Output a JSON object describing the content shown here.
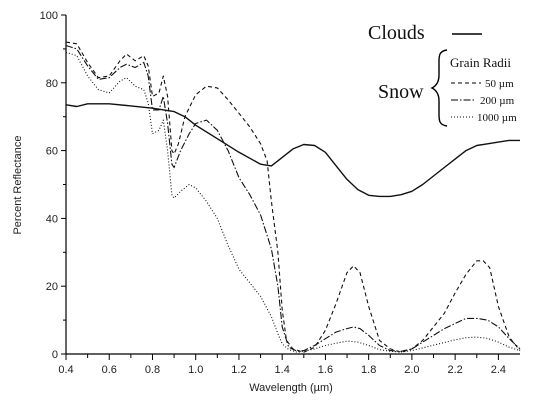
{
  "chart_data": {
    "type": "line",
    "xlabel": "Wavelength (µm)",
    "ylabel": "Percent Reflectance",
    "xlim": [
      0.4,
      2.5
    ],
    "ylim": [
      0,
      100
    ],
    "x_ticks": [
      0.4,
      0.6,
      0.8,
      1.0,
      1.2,
      1.4,
      1.6,
      1.8,
      2.0,
      2.2,
      2.4
    ],
    "x_tick_labels": [
      "0.4",
      "0.6",
      "0.8",
      "1.0",
      "1.2",
      "1.4",
      "1.6",
      "1.8",
      "2.0",
      "2.2",
      "2.4"
    ],
    "y_ticks": [
      0,
      20,
      40,
      60,
      80,
      100
    ],
    "y_tick_labels": [
      "0",
      "20",
      "40",
      "60",
      "80",
      "100"
    ],
    "grid": false,
    "legend": {
      "clouds_label": "Clouds",
      "snow_label": "Snow",
      "grain_header": "Grain Radii",
      "placement": "top-right"
    },
    "series": [
      {
        "name": "Clouds",
        "line_style": "solid",
        "points": [
          [
            0.4,
            73.5
          ],
          [
            0.45,
            73
          ],
          [
            0.5,
            73.8
          ],
          [
            0.6,
            73.8
          ],
          [
            0.7,
            73.2
          ],
          [
            0.8,
            72.5
          ],
          [
            0.9,
            71.5
          ],
          [
            0.95,
            70
          ],
          [
            1.0,
            67.5
          ],
          [
            1.1,
            63.5
          ],
          [
            1.2,
            59.5
          ],
          [
            1.3,
            56
          ],
          [
            1.35,
            55.5
          ],
          [
            1.4,
            58
          ],
          [
            1.45,
            60.5
          ],
          [
            1.5,
            61.8
          ],
          [
            1.55,
            61.5
          ],
          [
            1.6,
            59.5
          ],
          [
            1.65,
            55.5
          ],
          [
            1.7,
            51.5
          ],
          [
            1.75,
            48.5
          ],
          [
            1.8,
            46.8
          ],
          [
            1.85,
            46.5
          ],
          [
            1.9,
            46.5
          ],
          [
            1.95,
            47
          ],
          [
            2.0,
            48
          ],
          [
            2.05,
            50
          ],
          [
            2.1,
            52.5
          ],
          [
            2.15,
            55
          ],
          [
            2.2,
            57.5
          ],
          [
            2.25,
            60
          ],
          [
            2.3,
            61.5
          ],
          [
            2.35,
            62
          ],
          [
            2.4,
            62.5
          ],
          [
            2.45,
            63
          ],
          [
            2.5,
            63
          ]
        ]
      },
      {
        "name": "50 µm",
        "line_style": "dashed",
        "points": [
          [
            0.4,
            92
          ],
          [
            0.45,
            91.5
          ],
          [
            0.5,
            86
          ],
          [
            0.55,
            81.5
          ],
          [
            0.6,
            82
          ],
          [
            0.65,
            86.5
          ],
          [
            0.68,
            88.5
          ],
          [
            0.72,
            86.5
          ],
          [
            0.76,
            88
          ],
          [
            0.78,
            85
          ],
          [
            0.8,
            76
          ],
          [
            0.83,
            77
          ],
          [
            0.85,
            82
          ],
          [
            0.87,
            76
          ],
          [
            0.89,
            60
          ],
          [
            0.9,
            59
          ],
          [
            0.92,
            62
          ],
          [
            0.95,
            70
          ],
          [
            1.0,
            76.5
          ],
          [
            1.05,
            79
          ],
          [
            1.1,
            78.5
          ],
          [
            1.15,
            75
          ],
          [
            1.2,
            71
          ],
          [
            1.25,
            67
          ],
          [
            1.3,
            62
          ],
          [
            1.33,
            57
          ],
          [
            1.35,
            45
          ],
          [
            1.38,
            30
          ],
          [
            1.4,
            13
          ],
          [
            1.42,
            4
          ],
          [
            1.45,
            1.5
          ],
          [
            1.5,
            0.5
          ],
          [
            1.55,
            2
          ],
          [
            1.6,
            7
          ],
          [
            1.65,
            15
          ],
          [
            1.7,
            24
          ],
          [
            1.73,
            26
          ],
          [
            1.76,
            24
          ],
          [
            1.8,
            14
          ],
          [
            1.85,
            4
          ],
          [
            1.9,
            1.5
          ],
          [
            1.95,
            0.5
          ],
          [
            2.0,
            1.5
          ],
          [
            2.05,
            4
          ],
          [
            2.1,
            8
          ],
          [
            2.15,
            12
          ],
          [
            2.2,
            18
          ],
          [
            2.25,
            23.5
          ],
          [
            2.3,
            27.5
          ],
          [
            2.33,
            27.5
          ],
          [
            2.36,
            25.5
          ],
          [
            2.4,
            14
          ],
          [
            2.45,
            5
          ],
          [
            2.5,
            1
          ]
        ]
      },
      {
        "name": "200 µm",
        "line_style": "dashdot",
        "points": [
          [
            0.4,
            91
          ],
          [
            0.45,
            90
          ],
          [
            0.5,
            85
          ],
          [
            0.55,
            81
          ],
          [
            0.6,
            81.5
          ],
          [
            0.65,
            84.5
          ],
          [
            0.68,
            85.5
          ],
          [
            0.72,
            84.5
          ],
          [
            0.76,
            86
          ],
          [
            0.78,
            82
          ],
          [
            0.8,
            72
          ],
          [
            0.83,
            72
          ],
          [
            0.85,
            76
          ],
          [
            0.87,
            68
          ],
          [
            0.89,
            56
          ],
          [
            0.9,
            55
          ],
          [
            0.93,
            60
          ],
          [
            0.97,
            65
          ],
          [
            1.0,
            68
          ],
          [
            1.05,
            69
          ],
          [
            1.1,
            66
          ],
          [
            1.15,
            60
          ],
          [
            1.2,
            52
          ],
          [
            1.25,
            47
          ],
          [
            1.3,
            41
          ],
          [
            1.35,
            31
          ],
          [
            1.38,
            20
          ],
          [
            1.4,
            8
          ],
          [
            1.43,
            2
          ],
          [
            1.47,
            0.8
          ],
          [
            1.5,
            1
          ],
          [
            1.55,
            2.5
          ],
          [
            1.6,
            4.5
          ],
          [
            1.65,
            6.5
          ],
          [
            1.7,
            7.5
          ],
          [
            1.73,
            8
          ],
          [
            1.76,
            7.5
          ],
          [
            1.8,
            5.5
          ],
          [
            1.85,
            2.5
          ],
          [
            1.9,
            1
          ],
          [
            1.95,
            0.8
          ],
          [
            2.0,
            1.5
          ],
          [
            2.05,
            3.5
          ],
          [
            2.1,
            5.5
          ],
          [
            2.15,
            7.5
          ],
          [
            2.2,
            9
          ],
          [
            2.25,
            10.5
          ],
          [
            2.3,
            10.5
          ],
          [
            2.35,
            10
          ],
          [
            2.4,
            8
          ],
          [
            2.45,
            4.5
          ],
          [
            2.5,
            1.5
          ]
        ]
      },
      {
        "name": "1000 µm",
        "line_style": "dotted",
        "points": [
          [
            0.4,
            89
          ],
          [
            0.45,
            88
          ],
          [
            0.5,
            82
          ],
          [
            0.55,
            78
          ],
          [
            0.6,
            77
          ],
          [
            0.65,
            80.5
          ],
          [
            0.68,
            81.5
          ],
          [
            0.72,
            79
          ],
          [
            0.76,
            78
          ],
          [
            0.78,
            74
          ],
          [
            0.8,
            65
          ],
          [
            0.83,
            66
          ],
          [
            0.85,
            69
          ],
          [
            0.87,
            60
          ],
          [
            0.89,
            47
          ],
          [
            0.9,
            46
          ],
          [
            0.93,
            48
          ],
          [
            0.97,
            50
          ],
          [
            1.0,
            49
          ],
          [
            1.05,
            45
          ],
          [
            1.1,
            40
          ],
          [
            1.15,
            32
          ],
          [
            1.2,
            25
          ],
          [
            1.25,
            21
          ],
          [
            1.3,
            17
          ],
          [
            1.35,
            11
          ],
          [
            1.38,
            6
          ],
          [
            1.4,
            3
          ],
          [
            1.43,
            1.3
          ],
          [
            1.47,
            0.5
          ],
          [
            1.5,
            0.8
          ],
          [
            1.55,
            1.5
          ],
          [
            1.6,
            2.5
          ],
          [
            1.65,
            3.2
          ],
          [
            1.7,
            3.8
          ],
          [
            1.75,
            3.5
          ],
          [
            1.8,
            2.5
          ],
          [
            1.85,
            1.3
          ],
          [
            1.9,
            0.8
          ],
          [
            1.95,
            0.6
          ],
          [
            2.0,
            1
          ],
          [
            2.05,
            1.8
          ],
          [
            2.1,
            2.6
          ],
          [
            2.15,
            3.4
          ],
          [
            2.2,
            4.2
          ],
          [
            2.25,
            4.8
          ],
          [
            2.3,
            5
          ],
          [
            2.35,
            4.6
          ],
          [
            2.4,
            3.5
          ],
          [
            2.45,
            2
          ],
          [
            2.5,
            1
          ]
        ]
      }
    ]
  }
}
